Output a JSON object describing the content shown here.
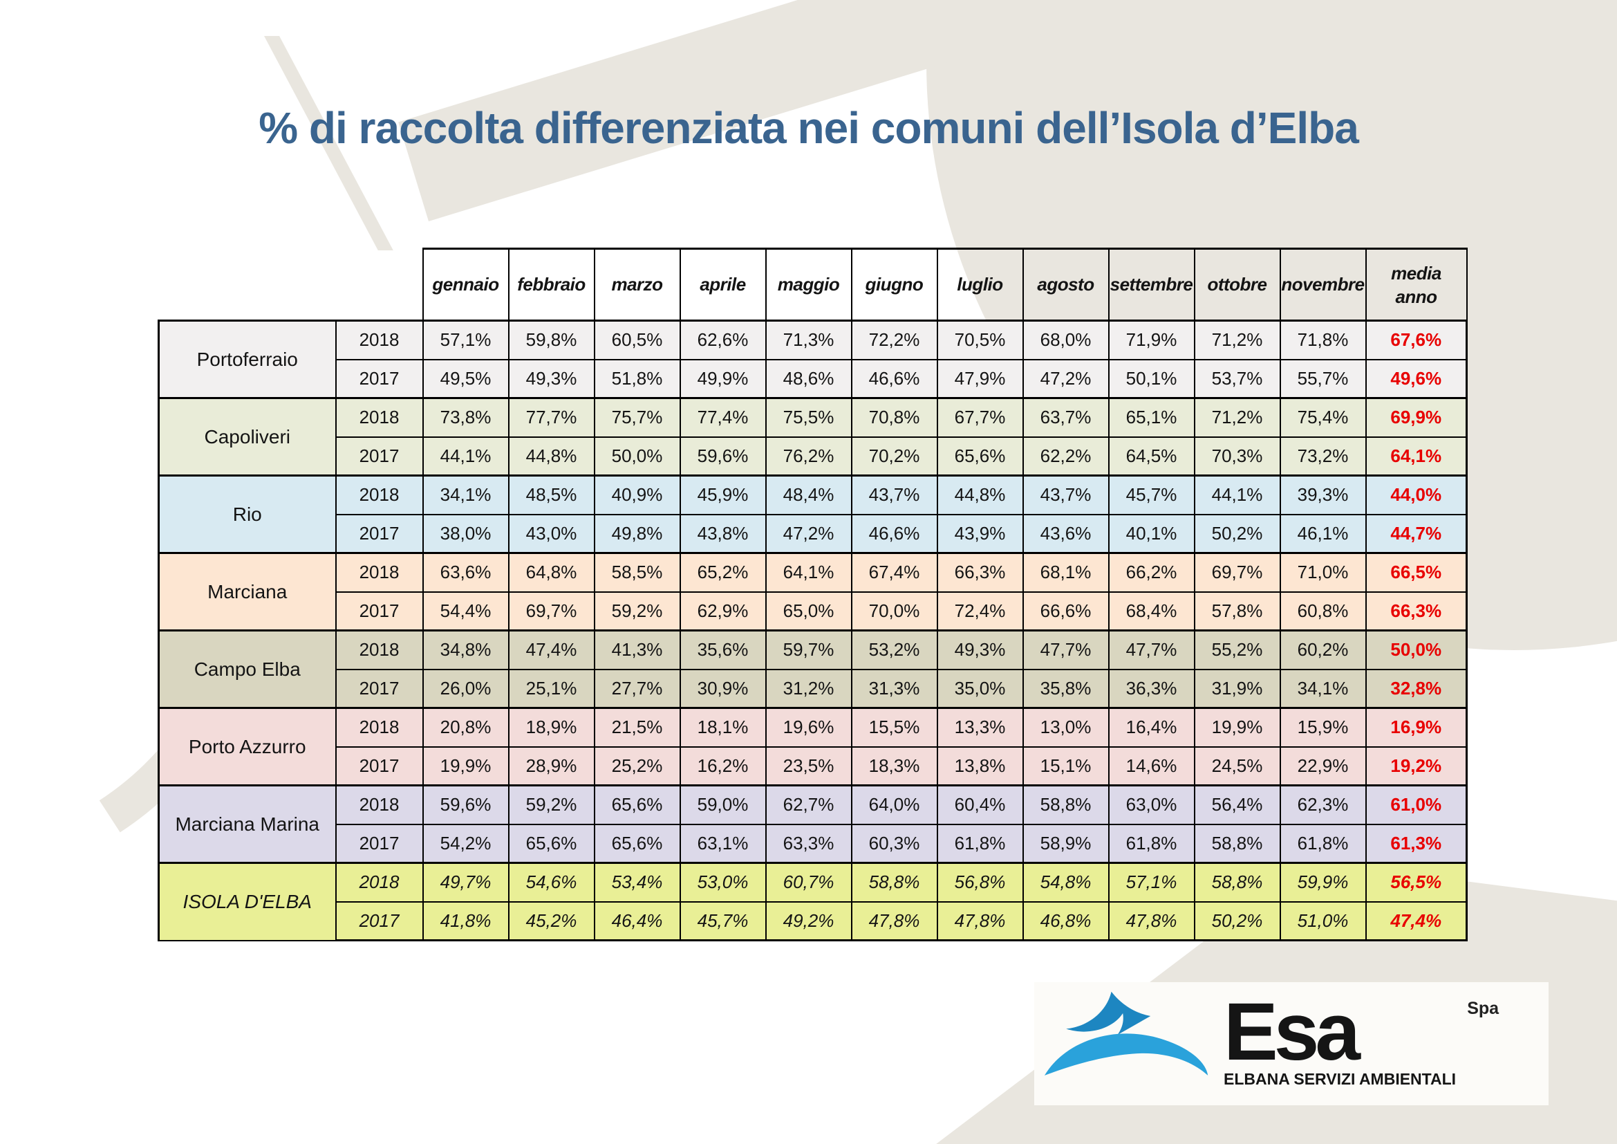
{
  "colors": {
    "title": "#3a648f",
    "accent_background": "#e9e6df",
    "table_border": "#000000",
    "cell_text": "#141414",
    "media_value": "#e80000",
    "logo_blue_dark": "#1d86c1",
    "logo_blue_light": "#2aa2db"
  },
  "chart_data": {
    "type": "table",
    "title": "% di raccolta differenziata nei comuni dell’Isola d’Elba",
    "unit": "percent, comma decimals",
    "months": [
      "gennaio",
      "febbraio",
      "marzo",
      "aprile",
      "maggio",
      "giugno",
      "luglio",
      "agosto",
      "settembre",
      "ottobre",
      "novembre"
    ],
    "media_header": {
      "line1": "media",
      "line2": "anno"
    },
    "groups": [
      {
        "name": "Portoferraio",
        "bg": "#f2f0f0",
        "italic": false,
        "rows": [
          {
            "year": "2018",
            "values": [
              "57,1%",
              "59,8%",
              "60,5%",
              "62,6%",
              "71,3%",
              "72,2%",
              "70,5%",
              "68,0%",
              "71,9%",
              "71,2%",
              "71,8%"
            ],
            "media": "67,6%"
          },
          {
            "year": "2017",
            "values": [
              "49,5%",
              "49,3%",
              "51,8%",
              "49,9%",
              "48,6%",
              "46,6%",
              "47,9%",
              "47,2%",
              "50,1%",
              "53,7%",
              "55,7%"
            ],
            "media": "49,6%"
          }
        ]
      },
      {
        "name": "Capoliveri",
        "bg": "#e9ecd8",
        "italic": false,
        "rows": [
          {
            "year": "2018",
            "values": [
              "73,8%",
              "77,7%",
              "75,7%",
              "77,4%",
              "75,5%",
              "70,8%",
              "67,7%",
              "63,7%",
              "65,1%",
              "71,2%",
              "75,4%"
            ],
            "media": "69,9%"
          },
          {
            "year": "2017",
            "values": [
              "44,1%",
              "44,8%",
              "50,0%",
              "59,6%",
              "76,2%",
              "70,2%",
              "65,6%",
              "62,2%",
              "64,5%",
              "70,3%",
              "73,2%"
            ],
            "media": "64,1%"
          }
        ]
      },
      {
        "name": "Rio",
        "bg": "#d8eaf2",
        "italic": false,
        "rows": [
          {
            "year": "2018",
            "values": [
              "34,1%",
              "48,5%",
              "40,9%",
              "45,9%",
              "48,4%",
              "43,7%",
              "44,8%",
              "43,7%",
              "45,7%",
              "44,1%",
              "39,3%"
            ],
            "media": "44,0%"
          },
          {
            "year": "2017",
            "values": [
              "38,0%",
              "43,0%",
              "49,8%",
              "43,8%",
              "47,2%",
              "46,6%",
              "43,9%",
              "43,6%",
              "40,1%",
              "50,2%",
              "46,1%"
            ],
            "media": "44,7%"
          }
        ]
      },
      {
        "name": "Marciana",
        "bg": "#fde6d2",
        "italic": false,
        "rows": [
          {
            "year": "2018",
            "values": [
              "63,6%",
              "64,8%",
              "58,5%",
              "65,2%",
              "64,1%",
              "67,4%",
              "66,3%",
              "68,1%",
              "66,2%",
              "69,7%",
              "71,0%"
            ],
            "media": "66,5%"
          },
          {
            "year": "2017",
            "values": [
              "54,4%",
              "69,7%",
              "59,2%",
              "62,9%",
              "65,0%",
              "70,0%",
              "72,4%",
              "66,6%",
              "68,4%",
              "57,8%",
              "60,8%"
            ],
            "media": "66,3%"
          }
        ]
      },
      {
        "name": "Campo Elba",
        "bg": "#d9d6c0",
        "italic": false,
        "rows": [
          {
            "year": "2018",
            "values": [
              "34,8%",
              "47,4%",
              "41,3%",
              "35,6%",
              "59,7%",
              "53,2%",
              "49,3%",
              "47,7%",
              "47,7%",
              "55,2%",
              "60,2%"
            ],
            "media": "50,0%"
          },
          {
            "year": "2017",
            "values": [
              "26,0%",
              "25,1%",
              "27,7%",
              "30,9%",
              "31,2%",
              "31,3%",
              "35,0%",
              "35,8%",
              "36,3%",
              "31,9%",
              "34,1%"
            ],
            "media": "32,8%"
          }
        ]
      },
      {
        "name": "Porto Azzurro",
        "bg": "#f3dcda",
        "italic": false,
        "rows": [
          {
            "year": "2018",
            "values": [
              "20,8%",
              "18,9%",
              "21,5%",
              "18,1%",
              "19,6%",
              "15,5%",
              "13,3%",
              "13,0%",
              "16,4%",
              "19,9%",
              "15,9%"
            ],
            "media": "16,9%"
          },
          {
            "year": "2017",
            "values": [
              "19,9%",
              "28,9%",
              "25,2%",
              "16,2%",
              "23,5%",
              "18,3%",
              "13,8%",
              "15,1%",
              "14,6%",
              "24,5%",
              "22,9%"
            ],
            "media": "19,2%"
          }
        ]
      },
      {
        "name": "Marciana Marina",
        "bg": "#dcd9e9",
        "italic": false,
        "rows": [
          {
            "year": "2018",
            "values": [
              "59,6%",
              "59,2%",
              "65,6%",
              "59,0%",
              "62,7%",
              "64,0%",
              "60,4%",
              "58,8%",
              "63,0%",
              "56,4%",
              "62,3%"
            ],
            "media": "61,0%"
          },
          {
            "year": "2017",
            "values": [
              "54,2%",
              "65,6%",
              "65,6%",
              "63,1%",
              "63,3%",
              "60,3%",
              "61,8%",
              "58,9%",
              "61,8%",
              "58,8%",
              "61,8%"
            ],
            "media": "61,3%"
          }
        ]
      },
      {
        "name": "ISOLA D'ELBA",
        "bg": "#e9ef96",
        "italic": true,
        "rows": [
          {
            "year": "2018",
            "values": [
              "49,7%",
              "54,6%",
              "53,4%",
              "53,0%",
              "60,7%",
              "58,8%",
              "56,8%",
              "54,8%",
              "57,1%",
              "58,8%",
              "59,9%"
            ],
            "media": "56,5%"
          },
          {
            "year": "2017",
            "values": [
              "41,8%",
              "45,2%",
              "46,4%",
              "45,7%",
              "49,2%",
              "47,8%",
              "47,8%",
              "46,8%",
              "47,8%",
              "50,2%",
              "51,0%"
            ],
            "media": "47,4%"
          }
        ]
      }
    ]
  },
  "logo": {
    "brand": "Esa",
    "suffix": "Spa",
    "subtitle": "ELBANA SERVIZI AMBIENTALI"
  }
}
